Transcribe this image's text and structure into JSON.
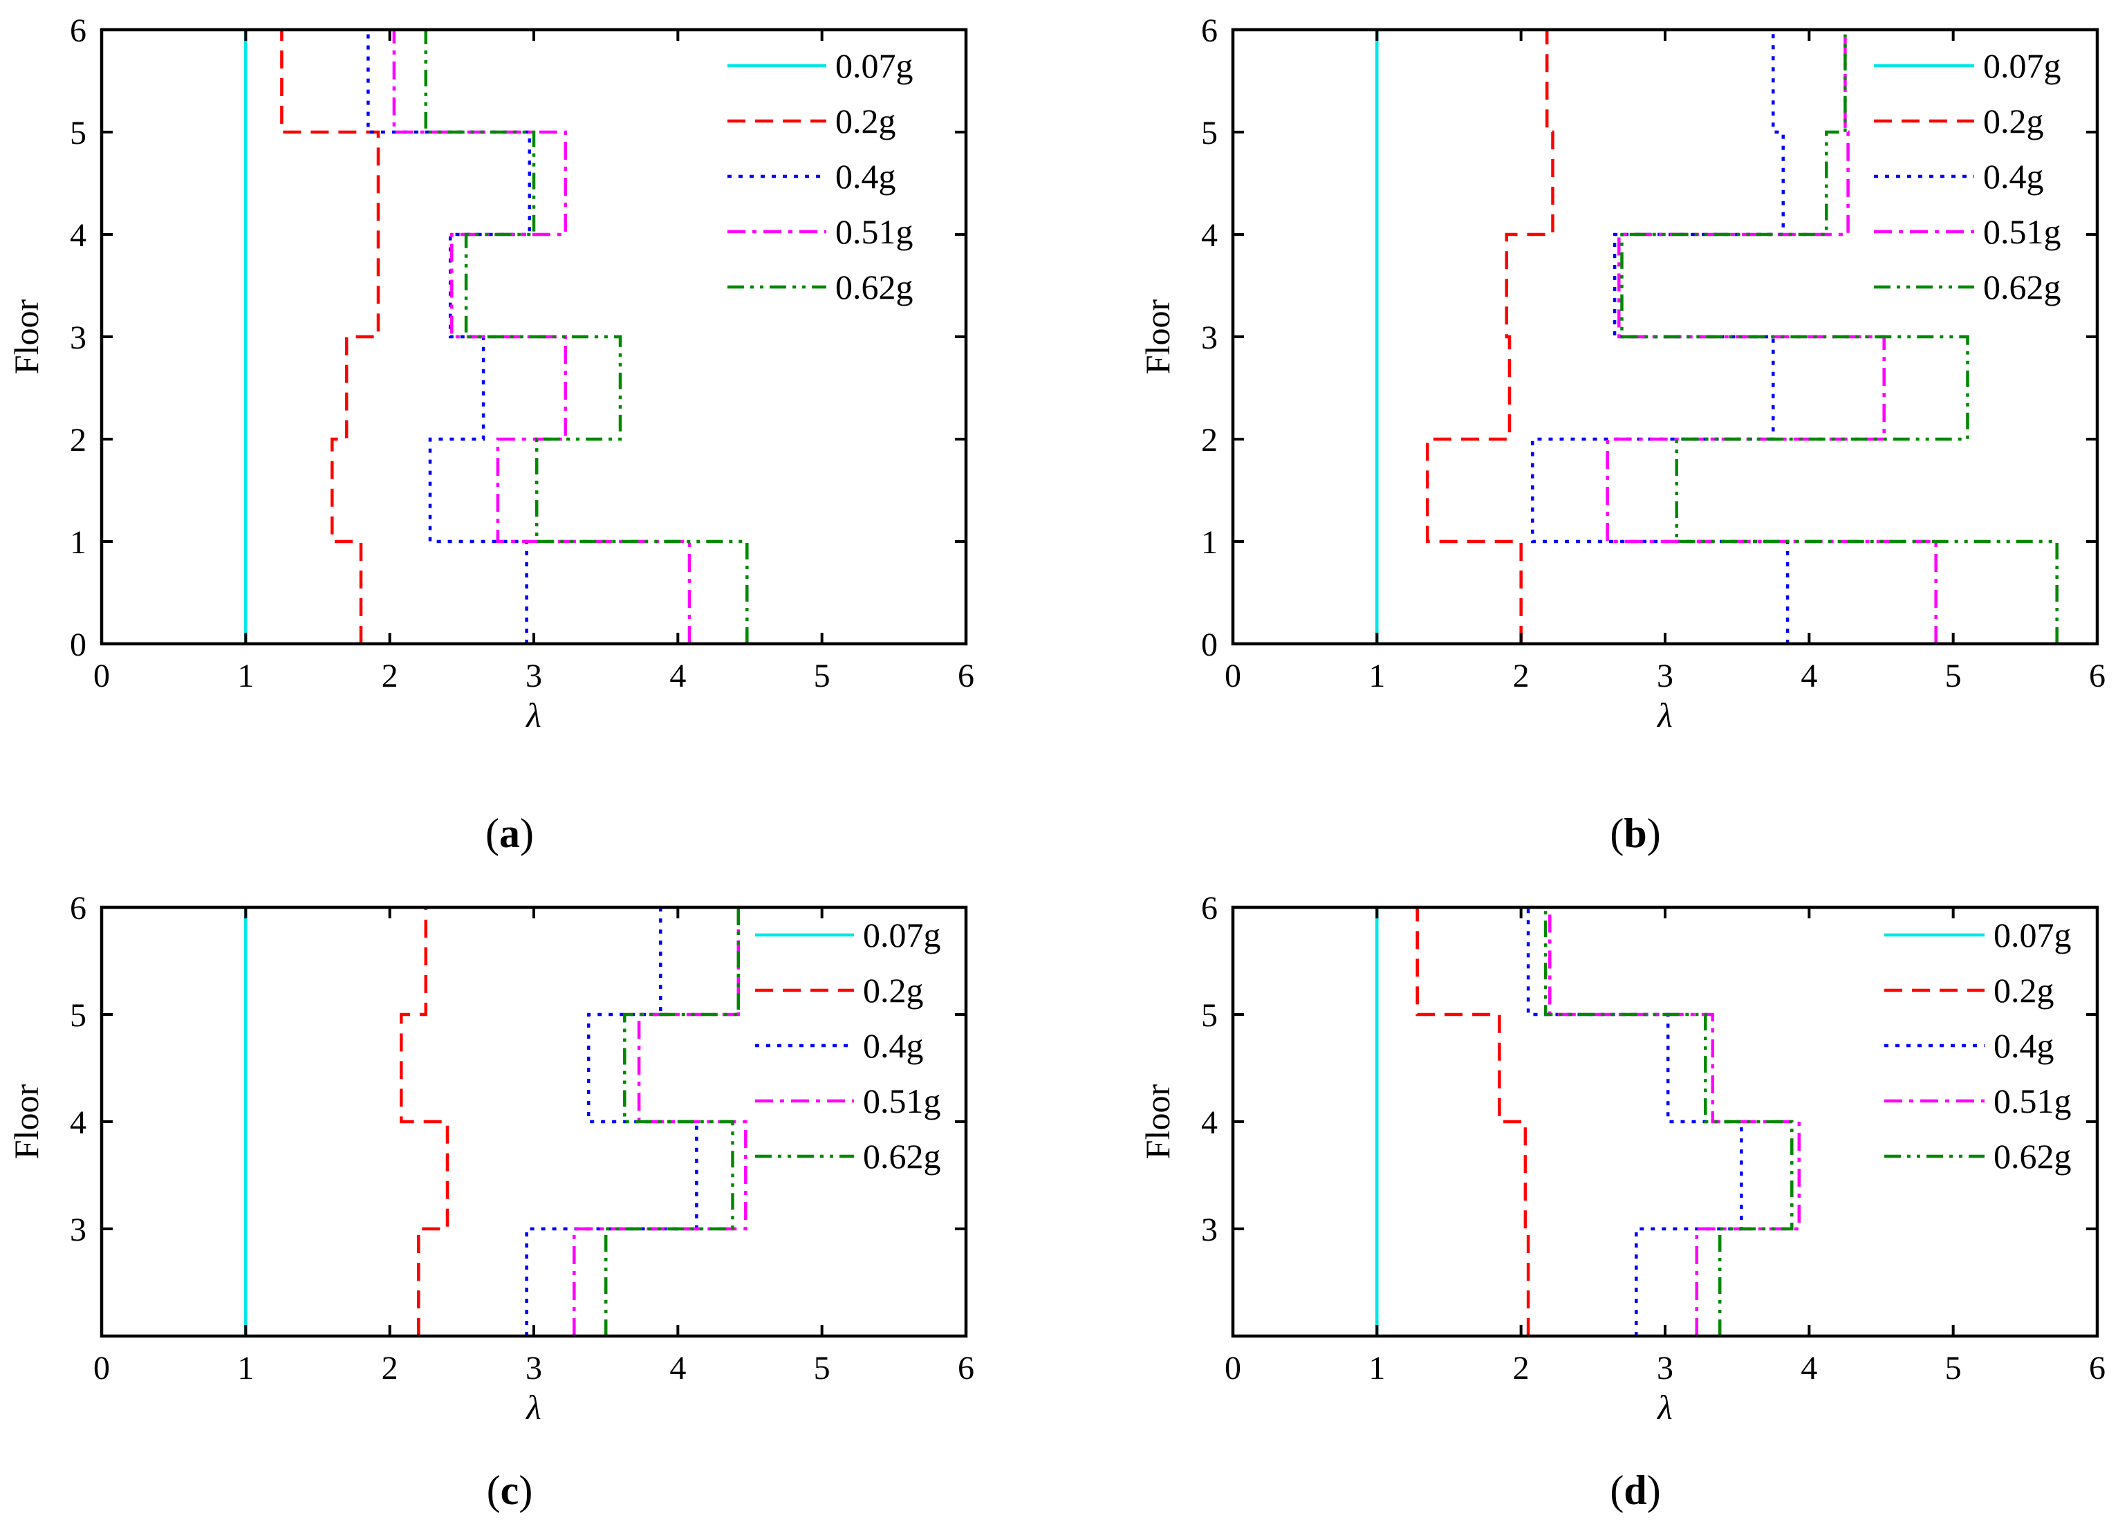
{
  "chart_data": [
    {
      "type": "line",
      "panel": "a",
      "caption_open": "(",
      "caption_label": "a",
      "caption_close": ")",
      "xlabel": "λ",
      "ylabel": "Floor",
      "xlim": [
        0,
        6
      ],
      "ylim": [
        0,
        6
      ],
      "xticks": [
        "0",
        "1",
        "2",
        "3",
        "4",
        "5",
        "6"
      ],
      "yticks": [
        "0",
        "1",
        "2",
        "3",
        "4",
        "5",
        "6"
      ],
      "legend_position": "top-right",
      "series": [
        {
          "name": "0.07g",
          "color": "#00e5e5",
          "style": "solid",
          "values": [
            1,
            1,
            1,
            1,
            1,
            1
          ]
        },
        {
          "name": "0.2g",
          "color": "#ff0000",
          "style": "dash",
          "values": [
            1.8,
            1.6,
            1.7,
            1.92,
            1.92,
            1.25
          ]
        },
        {
          "name": "0.4g",
          "color": "#0000ff",
          "style": "dot",
          "values": [
            2.95,
            2.28,
            2.65,
            2.42,
            2.97,
            1.85
          ]
        },
        {
          "name": "0.51g",
          "color": "#ff00ff",
          "style": "dashdot",
          "values": [
            4.08,
            2.75,
            3.22,
            2.43,
            3.22,
            2.03
          ]
        },
        {
          "name": "0.62g",
          "color": "#008800",
          "style": "dashdotdot",
          "values": [
            4.48,
            3.02,
            3.6,
            2.53,
            3.0,
            2.25
          ]
        }
      ]
    },
    {
      "type": "line",
      "panel": "b",
      "caption_open": "(",
      "caption_label": "b",
      "caption_close": ")",
      "xlabel": "λ",
      "ylabel": "Floor",
      "xlim": [
        0,
        6
      ],
      "ylim": [
        0,
        6
      ],
      "xticks": [
        "0",
        "1",
        "2",
        "3",
        "4",
        "5",
        "6"
      ],
      "yticks": [
        "0",
        "1",
        "2",
        "3",
        "4",
        "5",
        "6"
      ],
      "legend_position": "top-right",
      "series": [
        {
          "name": "0.07g",
          "color": "#00e5e5",
          "style": "solid",
          "values": [
            1,
            1,
            1,
            1,
            1,
            1
          ]
        },
        {
          "name": "0.2g",
          "color": "#ff0000",
          "style": "dash",
          "values": [
            2.0,
            1.35,
            1.92,
            1.9,
            2.22,
            2.18
          ]
        },
        {
          "name": "0.4g",
          "color": "#0000ff",
          "style": "dot",
          "values": [
            3.85,
            2.08,
            3.75,
            2.65,
            3.82,
            3.75
          ]
        },
        {
          "name": "0.51g",
          "color": "#ff00ff",
          "style": "dashdot",
          "values": [
            4.88,
            2.6,
            4.52,
            2.68,
            4.27,
            4.25
          ]
        },
        {
          "name": "0.62g",
          "color": "#008800",
          "style": "dashdotdot",
          "values": [
            5.72,
            3.08,
            5.1,
            2.7,
            4.12,
            4.25
          ]
        }
      ]
    },
    {
      "type": "line",
      "panel": "c",
      "caption_open": "(",
      "caption_label": "c",
      "caption_close": ")",
      "xlabel": "λ",
      "ylabel": "Floor",
      "xlim": [
        0,
        6
      ],
      "ylim": [
        2,
        6
      ],
      "xticks": [
        "0",
        "1",
        "2",
        "3",
        "4",
        "5",
        "6"
      ],
      "yticks": [
        "3",
        "4",
        "5",
        "6"
      ],
      "legend_position": "top-right",
      "series": [
        {
          "name": "0.07g",
          "color": "#00e5e5",
          "style": "solid",
          "values": [
            1,
            1,
            1,
            1
          ]
        },
        {
          "name": "0.2g",
          "color": "#ff0000",
          "style": "dash",
          "values": [
            2.2,
            2.4,
            2.08,
            2.25
          ]
        },
        {
          "name": "0.4g",
          "color": "#0000ff",
          "style": "dot",
          "values": [
            2.95,
            4.13,
            3.38,
            3.88
          ]
        },
        {
          "name": "0.51g",
          "color": "#ff00ff",
          "style": "dashdot",
          "values": [
            3.28,
            4.47,
            3.73,
            4.42
          ]
        },
        {
          "name": "0.62g",
          "color": "#008800",
          "style": "dashdotdot",
          "values": [
            3.5,
            4.38,
            3.63,
            4.42
          ]
        }
      ]
    },
    {
      "type": "line",
      "panel": "d",
      "caption_open": "(",
      "caption_label": "d",
      "caption_close": ")",
      "xlabel": "λ",
      "ylabel": "Floor",
      "xlim": [
        0,
        6
      ],
      "ylim": [
        2,
        6
      ],
      "xticks": [
        "0",
        "1",
        "2",
        "3",
        "4",
        "5",
        "6"
      ],
      "yticks": [
        "3",
        "4",
        "5",
        "6"
      ],
      "legend_position": "top-right",
      "series": [
        {
          "name": "0.07g",
          "color": "#00e5e5",
          "style": "solid",
          "values": [
            1,
            1,
            1,
            1
          ]
        },
        {
          "name": "0.2g",
          "color": "#ff0000",
          "style": "dash",
          "values": [
            2.05,
            2.03,
            1.85,
            1.28
          ]
        },
        {
          "name": "0.4g",
          "color": "#0000ff",
          "style": "dot",
          "values": [
            2.8,
            3.53,
            3.02,
            2.05
          ]
        },
        {
          "name": "0.51g",
          "color": "#ff00ff",
          "style": "dashdot",
          "values": [
            3.22,
            3.93,
            3.33,
            2.2
          ]
        },
        {
          "name": "0.62g",
          "color": "#008800",
          "style": "dashdotdot",
          "values": [
            3.38,
            3.88,
            3.28,
            2.17
          ]
        }
      ]
    }
  ]
}
